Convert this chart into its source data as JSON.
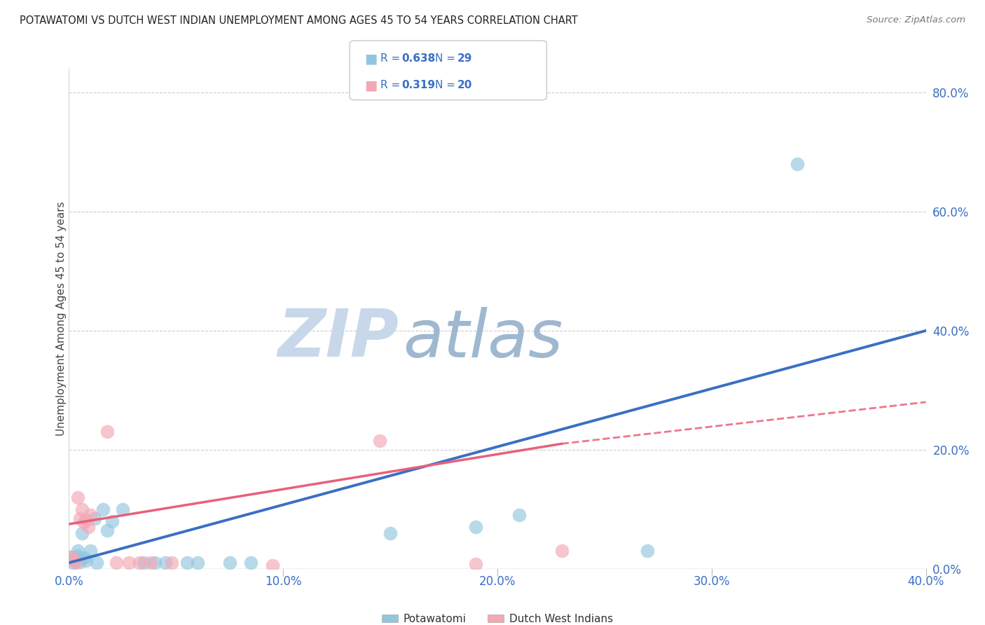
{
  "title": "POTAWATOMI VS DUTCH WEST INDIAN UNEMPLOYMENT AMONG AGES 45 TO 54 YEARS CORRELATION CHART",
  "source": "Source: ZipAtlas.com",
  "ylabel_left": "Unemployment Among Ages 45 to 54 years",
  "xlim": [
    0,
    0.4
  ],
  "ylim": [
    0,
    0.84
  ],
  "xticks": [
    0.0,
    0.1,
    0.2,
    0.3,
    0.4
  ],
  "yticks_right": [
    0.0,
    0.2,
    0.4,
    0.6,
    0.8
  ],
  "blue_r": 0.638,
  "blue_n": 29,
  "pink_r": 0.319,
  "pink_n": 20,
  "blue_color": "#92c5de",
  "pink_color": "#f4a7b5",
  "blue_line_color": "#3a6fc4",
  "pink_line_color": "#e8607a",
  "tick_label_color": "#3a6fc4",
  "blue_scatter": [
    [
      0.001,
      0.02
    ],
    [
      0.002,
      0.015
    ],
    [
      0.002,
      0.01
    ],
    [
      0.003,
      0.018
    ],
    [
      0.004,
      0.022
    ],
    [
      0.004,
      0.03
    ],
    [
      0.005,
      0.012
    ],
    [
      0.006,
      0.06
    ],
    [
      0.007,
      0.018
    ],
    [
      0.008,
      0.014
    ],
    [
      0.01,
      0.03
    ],
    [
      0.012,
      0.085
    ],
    [
      0.013,
      0.01
    ],
    [
      0.016,
      0.1
    ],
    [
      0.018,
      0.065
    ],
    [
      0.02,
      0.08
    ],
    [
      0.025,
      0.1
    ],
    [
      0.035,
      0.01
    ],
    [
      0.04,
      0.01
    ],
    [
      0.045,
      0.01
    ],
    [
      0.055,
      0.01
    ],
    [
      0.06,
      0.01
    ],
    [
      0.075,
      0.01
    ],
    [
      0.085,
      0.01
    ],
    [
      0.15,
      0.06
    ],
    [
      0.19,
      0.07
    ],
    [
      0.21,
      0.09
    ],
    [
      0.27,
      0.03
    ],
    [
      0.34,
      0.68
    ]
  ],
  "pink_scatter": [
    [
      0.001,
      0.02
    ],
    [
      0.002,
      0.015
    ],
    [
      0.003,
      0.01
    ],
    [
      0.004,
      0.12
    ],
    [
      0.005,
      0.085
    ],
    [
      0.006,
      0.1
    ],
    [
      0.007,
      0.078
    ],
    [
      0.008,
      0.082
    ],
    [
      0.009,
      0.07
    ],
    [
      0.01,
      0.09
    ],
    [
      0.018,
      0.23
    ],
    [
      0.022,
      0.01
    ],
    [
      0.028,
      0.01
    ],
    [
      0.038,
      0.01
    ],
    [
      0.048,
      0.01
    ],
    [
      0.145,
      0.215
    ],
    [
      0.19,
      0.008
    ],
    [
      0.23,
      0.03
    ],
    [
      0.095,
      0.005
    ],
    [
      0.033,
      0.01
    ]
  ],
  "blue_trendline": [
    [
      0.0,
      0.01
    ],
    [
      0.4,
      0.4
    ]
  ],
  "pink_trendline": [
    [
      0.0,
      0.075
    ],
    [
      0.4,
      0.28
    ]
  ],
  "pink_trendline_dashed": [
    [
      0.23,
      0.21
    ],
    [
      0.4,
      0.28
    ]
  ],
  "pink_trendline_solid": [
    [
      0.0,
      0.075
    ],
    [
      0.23,
      0.21
    ]
  ],
  "watermark_zip": "ZIP",
  "watermark_atlas": "atlas",
  "watermark_color_zip": "#c8d8ea",
  "watermark_color_atlas": "#9fb8d0",
  "grid_color": "#cccccc",
  "legend_box_color": "#e8eef5"
}
